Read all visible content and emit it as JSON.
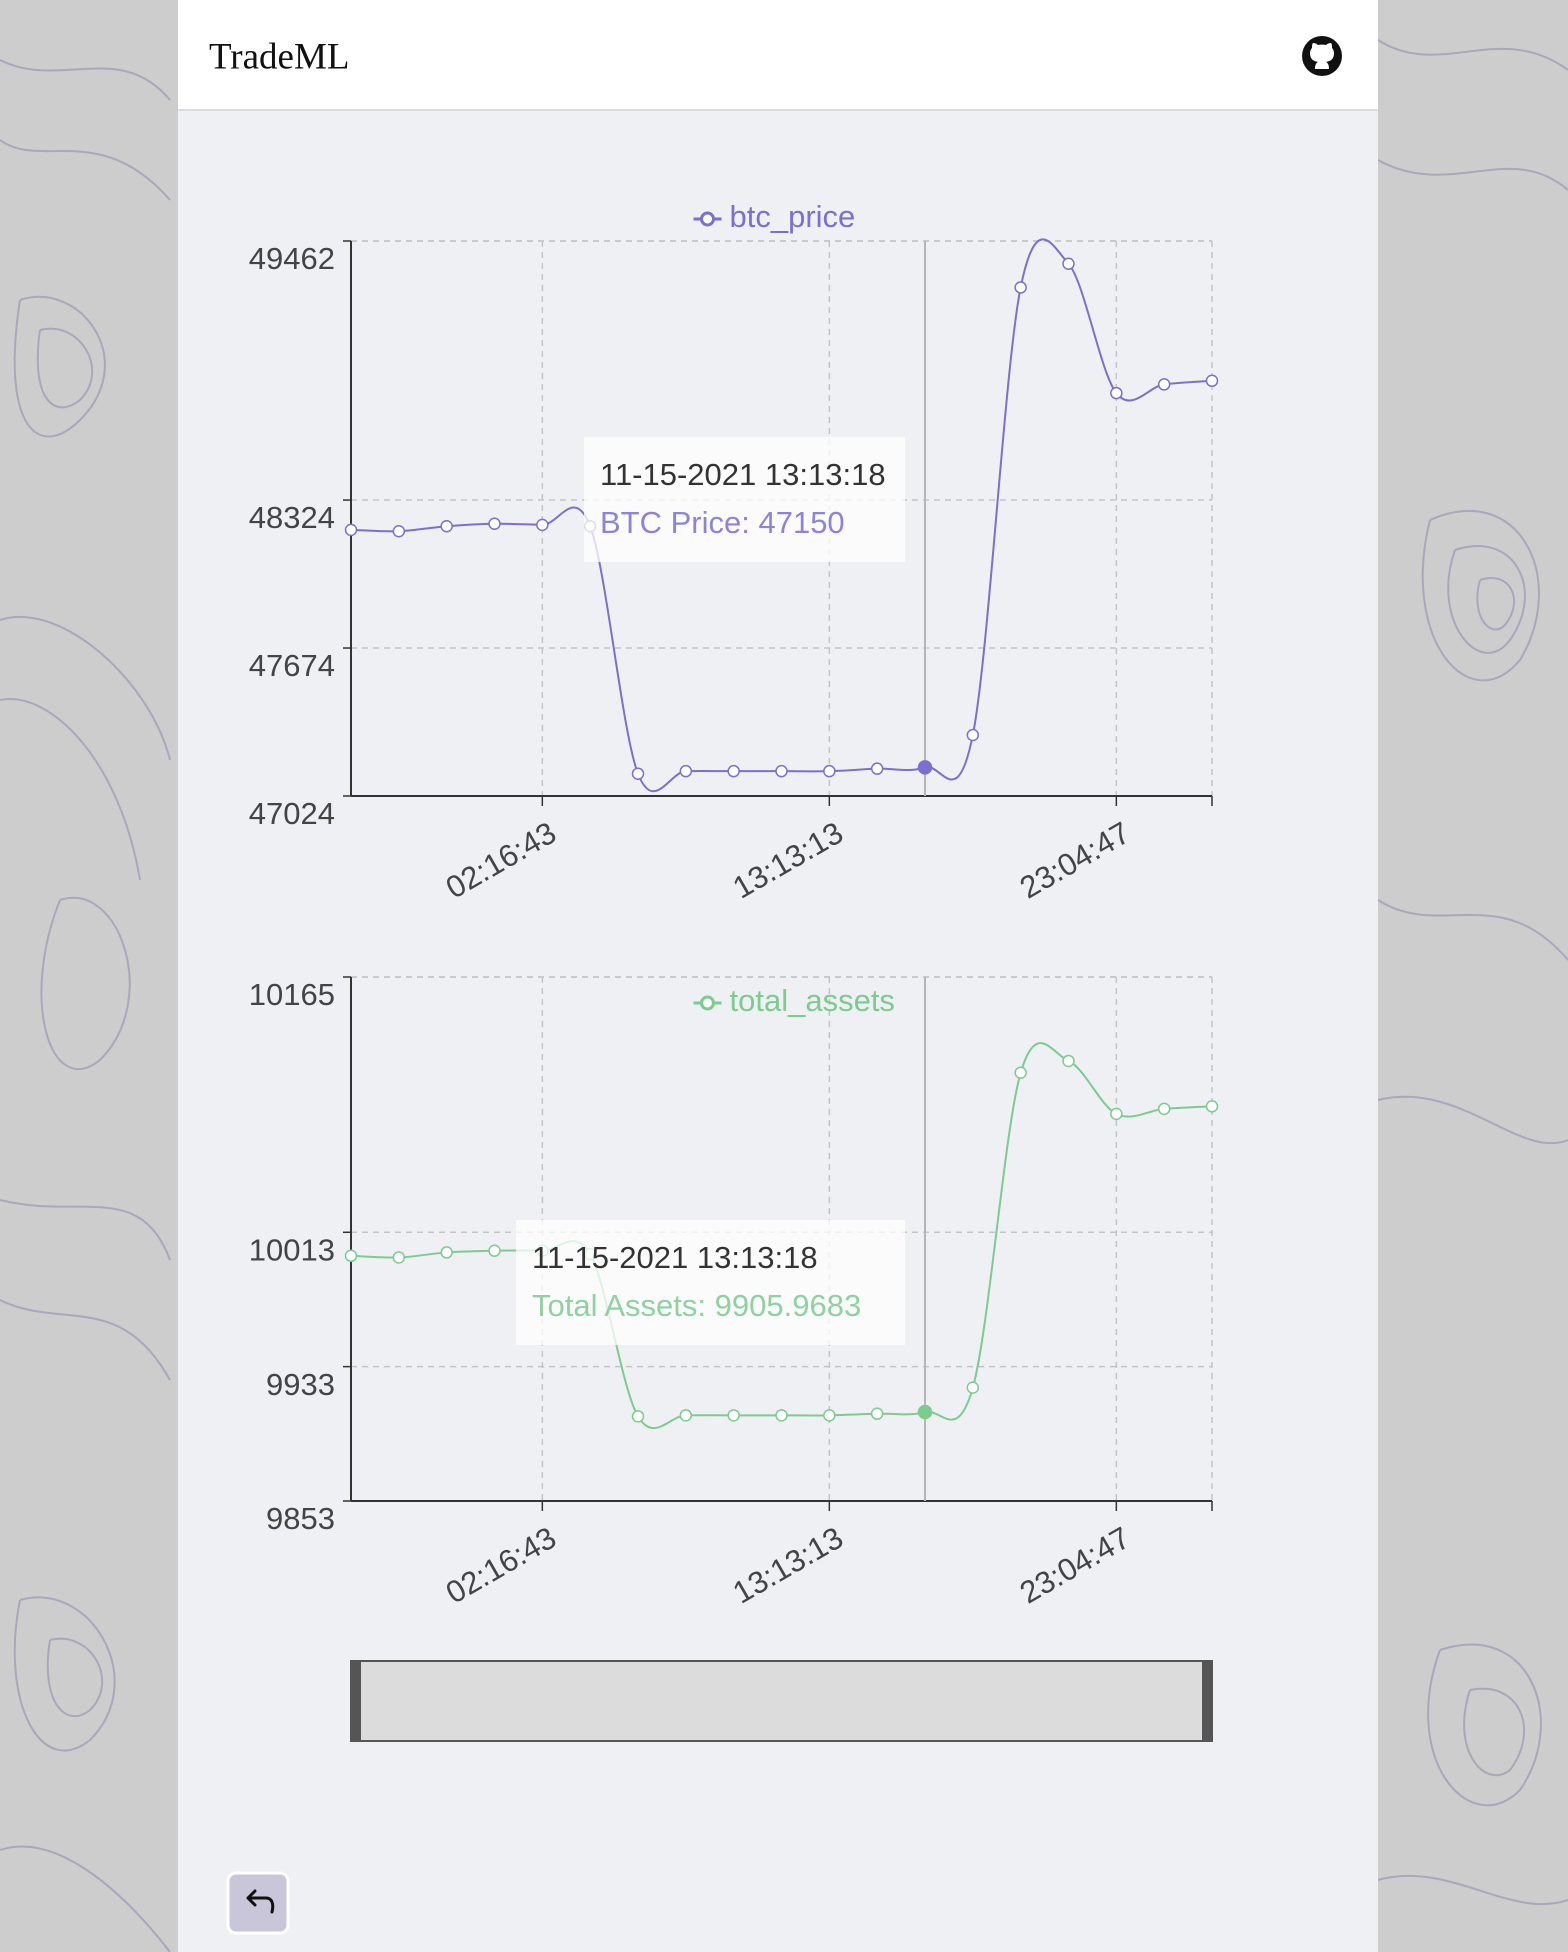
{
  "header": {
    "title": "TradeML"
  },
  "chart_data": [
    {
      "type": "line",
      "categories": [
        null,
        null,
        null,
        null,
        "02:16:43",
        null,
        null,
        null,
        null,
        null,
        "13:13:13",
        null,
        null,
        null,
        null,
        null,
        "23:04:47",
        null,
        null
      ],
      "series": [
        {
          "name": "btc_price",
          "color": "#7b6fd0",
          "values": [
            48193,
            48187,
            48209,
            48220,
            48215,
            48209,
            47122,
            47133,
            47133,
            47133,
            47133,
            47144,
            47150,
            47292,
            49258,
            49362,
            48794,
            48832,
            48848
          ]
        }
      ],
      "ylim": [
        47024,
        49462
      ],
      "yticks": [
        47024,
        47674,
        48324,
        49462
      ],
      "grid": true,
      "tooltip": {
        "title": "11-15-2021 13:13:18",
        "text": "BTC Price: 47150"
      }
    },
    {
      "type": "line",
      "categories": [
        null,
        null,
        null,
        null,
        "02:16:43",
        null,
        null,
        null,
        null,
        null,
        "13:13:13",
        null,
        null,
        null,
        null,
        null,
        "23:04:47",
        null,
        null
      ],
      "series": [
        {
          "name": "total_assets",
          "color": "#7ccb8f",
          "values": [
            9999,
            9998,
            10001,
            10002,
            10002,
            10000,
            9903.4,
            9904,
            9904,
            9904,
            9904,
            9905,
            9905.9683,
            9920.5,
            10108,
            10115,
            10083.5,
            10086.5,
            10088
          ]
        }
      ],
      "ylim": [
        9853,
        10165
      ],
      "yticks": [
        9853,
        9933,
        10013,
        10165
      ],
      "grid": true,
      "tooltip": {
        "title": "11-15-2021 13:13:18",
        "text": "Total Assets: 9905.9683"
      }
    }
  ]
}
